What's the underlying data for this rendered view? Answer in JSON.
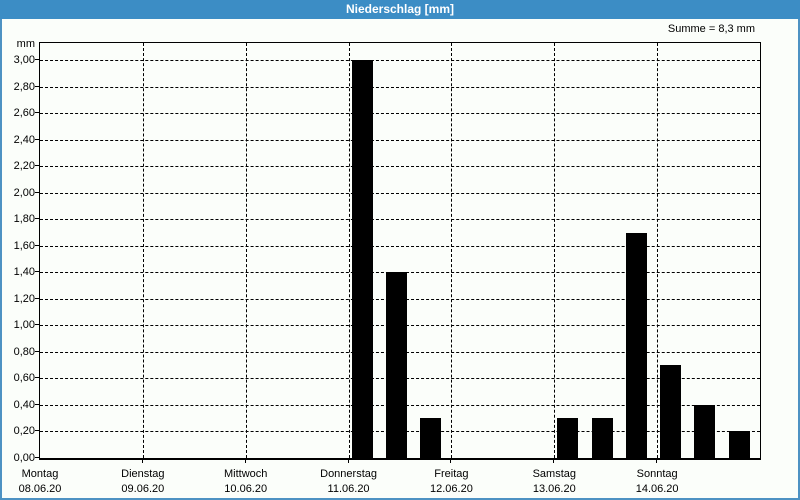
{
  "window": {
    "title": "Niederschlag [mm]"
  },
  "annotation": {
    "summe": "Summe = 8,3 mm"
  },
  "axis": {
    "unit": "mm"
  },
  "colors": {
    "titlebar": "#3c8dc5",
    "border": "#4d92c3",
    "background": "#fbfefa",
    "bar": "#000000",
    "grid": "#000000",
    "title_text": "#ffffff"
  },
  "chart_data": {
    "type": "bar",
    "title": "Niederschlag [mm]",
    "ylabel": "mm",
    "xlabel": "",
    "annotation": "Summe = 8,3 mm",
    "sum_mm": 8.3,
    "ylim": [
      0,
      3.13
    ],
    "ytick_step": 0.2,
    "decimal_separator": ",",
    "grid": true,
    "legend": "none",
    "bar_color": "#000000",
    "slots_per_day": 3,
    "yticks": [
      "0,00",
      "0,20",
      "0,40",
      "0,60",
      "0,80",
      "1,00",
      "1,20",
      "1,40",
      "1,60",
      "1,80",
      "2,00",
      "2,20",
      "2,40",
      "2,60",
      "2,80",
      "3,00"
    ],
    "days": [
      {
        "label": "Montag",
        "date": "08.06.20",
        "values": [
          0,
          0,
          0
        ]
      },
      {
        "label": "Dienstag",
        "date": "09.06.20",
        "values": [
          0,
          0,
          0
        ]
      },
      {
        "label": "Mittwoch",
        "date": "10.06.20",
        "values": [
          0,
          0,
          0
        ]
      },
      {
        "label": "Donnerstag",
        "date": "11.06.20",
        "values": [
          3.0,
          1.4,
          0.3
        ]
      },
      {
        "label": "Freitag",
        "date": "12.06.20",
        "values": [
          0,
          0,
          0
        ]
      },
      {
        "label": "Samstag",
        "date": "13.06.20",
        "values": [
          0.3,
          0.3,
          1.7
        ]
      },
      {
        "label": "Sonntag",
        "date": "14.06.20",
        "values": [
          0.7,
          0.4,
          0.2
        ]
      }
    ]
  }
}
